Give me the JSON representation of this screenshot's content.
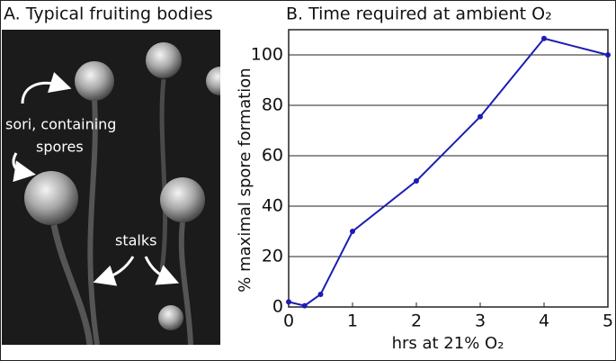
{
  "panel_a": {
    "title": "A. Typical fruiting bodies",
    "annotations": [
      "sori, containing",
      "spores",
      "stalks"
    ]
  },
  "chart_data": {
    "type": "line",
    "title": "B. Time required at ambient O₂",
    "xlabel": "hrs at 21% O₂",
    "ylabel": "% maximal spore formation",
    "x": [
      0,
      0.25,
      0.5,
      1,
      2,
      3,
      4,
      5
    ],
    "series": [
      {
        "color": "#1c1cb4",
        "values": [
          2,
          0.5,
          5,
          30,
          50,
          75.5,
          106.5,
          100
        ]
      }
    ],
    "xlim": [
      0,
      5
    ],
    "xticks": [
      0,
      1,
      2,
      3,
      4,
      5
    ],
    "ylim": [
      0,
      110
    ],
    "yticks": [
      0,
      20,
      40,
      60,
      80,
      100
    ],
    "grid": true
  }
}
